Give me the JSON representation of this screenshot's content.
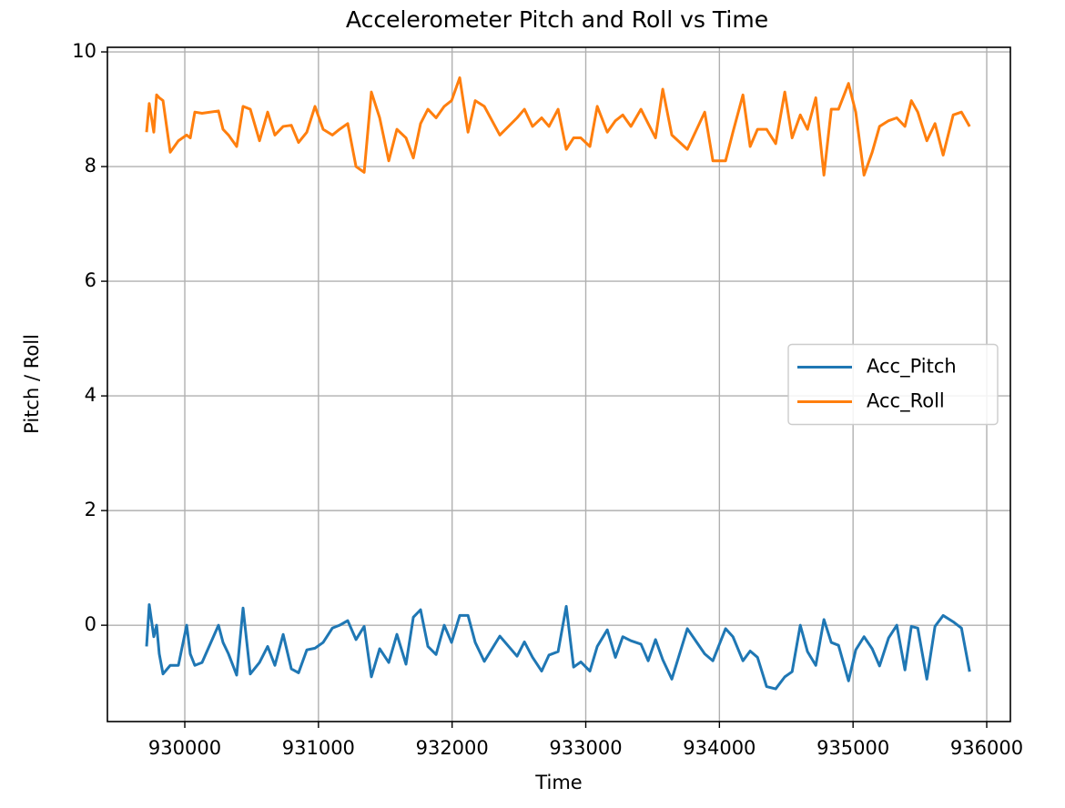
{
  "chart_data": {
    "type": "line",
    "title": "Accelerometer Pitch and Roll vs Time",
    "x_label": "Time",
    "y_label": "Pitch / Roll",
    "x": [
      929714,
      929734,
      929768,
      929789,
      929809,
      929837,
      929891,
      929952,
      930014,
      930041,
      930075,
      930129,
      930252,
      930286,
      930327,
      930388,
      930436,
      930490,
      930559,
      930620,
      930674,
      930736,
      930797,
      930851,
      930913,
      930974,
      931035,
      931104,
      931158,
      931219,
      931281,
      931342,
      931396,
      931458,
      931526,
      931587,
      931655,
      931710,
      931764,
      931819,
      931880,
      931941,
      931996,
      932057,
      932119,
      932173,
      932241,
      932357,
      932486,
      932541,
      932602,
      932670,
      932725,
      932793,
      932854,
      932909,
      932963,
      933031,
      933086,
      933161,
      933222,
      933277,
      933338,
      933413,
      933467,
      933522,
      933576,
      933644,
      933760,
      933890,
      933951,
      934046,
      934101,
      934176,
      934230,
      934285,
      934353,
      934421,
      934489,
      934544,
      934605,
      934659,
      934721,
      934782,
      934837,
      934891,
      934966,
      935020,
      935082,
      935143,
      935198,
      935266,
      935327,
      935388,
      935436,
      935484,
      935552,
      935613,
      935674,
      935749,
      935811,
      935872
    ],
    "series": [
      {
        "name": "Acc_Pitch",
        "color": "#1f77b4",
        "values": [
          -0.37,
          0.36,
          -0.2,
          0,
          -0.5,
          -0.85,
          -0.7,
          -0.7,
          0,
          -0.5,
          -0.7,
          -0.65,
          0,
          -0.3,
          -0.5,
          -0.87,
          0.3,
          -0.85,
          -0.65,
          -0.37,
          -0.7,
          -0.16,
          -0.76,
          -0.83,
          -0.43,
          -0.4,
          -0.3,
          -0.05,
          0,
          0.08,
          -0.25,
          -0.02,
          -0.9,
          -0.41,
          -0.65,
          -0.16,
          -0.68,
          0.14,
          0.27,
          -0.37,
          -0.51,
          0,
          -0.3,
          0.17,
          0.17,
          -0.3,
          -0.63,
          -0.19,
          -0.54,
          -0.29,
          -0.56,
          -0.8,
          -0.52,
          -0.46,
          0.33,
          -0.73,
          -0.64,
          -0.8,
          -0.37,
          -0.08,
          -0.56,
          -0.2,
          -0.27,
          -0.33,
          -0.62,
          -0.25,
          -0.6,
          -0.94,
          -0.06,
          -0.5,
          -0.62,
          -0.06,
          -0.2,
          -0.62,
          -0.45,
          -0.56,
          -1.07,
          -1.11,
          -0.9,
          -0.81,
          0,
          -0.46,
          -0.7,
          0.1,
          -0.3,
          -0.35,
          -0.97,
          -0.43,
          -0.2,
          -0.41,
          -0.71,
          -0.22,
          0,
          -0.78,
          -0.02,
          -0.05,
          -0.94,
          -0.02,
          0.17,
          0.06,
          -0.05,
          -0.81
        ]
      },
      {
        "name": "Acc_Roll",
        "color": "#ff7f0e",
        "values": [
          8.6,
          9.1,
          8.6,
          9.25,
          9.2,
          9.15,
          8.25,
          8.45,
          8.55,
          8.5,
          8.95,
          8.93,
          8.97,
          8.65,
          8.55,
          8.35,
          9.05,
          9.0,
          8.45,
          8.95,
          8.55,
          8.7,
          8.72,
          8.42,
          8.6,
          9.05,
          8.65,
          8.55,
          8.65,
          8.75,
          8.0,
          7.9,
          9.3,
          8.85,
          8.1,
          8.65,
          8.5,
          8.15,
          8.75,
          9.0,
          8.85,
          9.05,
          9.15,
          9.55,
          8.6,
          9.15,
          9.05,
          8.55,
          8.85,
          9.0,
          8.7,
          8.85,
          8.7,
          9.0,
          8.3,
          8.5,
          8.5,
          8.35,
          9.05,
          8.6,
          8.8,
          8.9,
          8.7,
          9.0,
          8.75,
          8.5,
          9.35,
          8.55,
          8.3,
          8.95,
          8.1,
          8.1,
          8.6,
          9.25,
          8.35,
          8.65,
          8.65,
          8.4,
          9.3,
          8.5,
          8.9,
          8.65,
          9.2,
          7.85,
          9.0,
          9.0,
          9.45,
          8.95,
          7.85,
          8.25,
          8.7,
          8.8,
          8.85,
          8.7,
          9.15,
          8.95,
          8.45,
          8.75,
          8.2,
          8.9,
          8.95,
          8.7
        ]
      }
    ],
    "xlim": [
      929421,
      936177
    ],
    "ylim": [
      -1.68,
      10.08
    ],
    "xticks": [
      930000,
      931000,
      932000,
      933000,
      934000,
      935000,
      936000
    ],
    "yticks": [
      0,
      2,
      4,
      6,
      8,
      10
    ],
    "grid": true,
    "legend": "center right"
  }
}
